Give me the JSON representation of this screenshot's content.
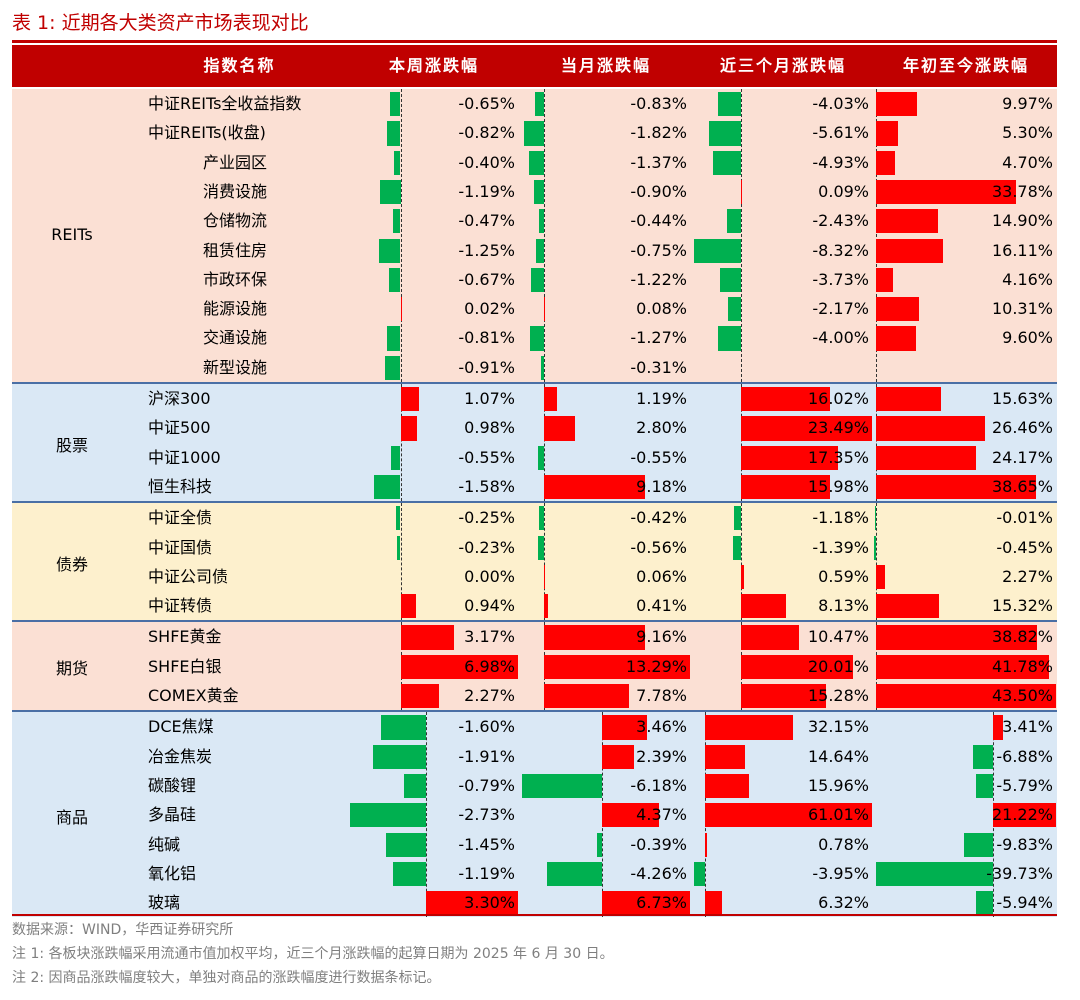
{
  "title": "表 1:  近期各大类资产市场表现对比",
  "header": {
    "name": "指数名称",
    "c1": "本周涨跌幅",
    "c2": "当月涨跌幅",
    "c3": "近三个月涨跌幅",
    "c4": "年初至今涨跌幅"
  },
  "colors": {
    "header_bg": "#c00000",
    "positive": "#ff0000",
    "negative": "#00b050",
    "reits_bg": "#fbe0d4",
    "stocks_bg": "#dae8f5",
    "bonds_bg": "#fdf0cd",
    "futures_bg": "#fbe0d4",
    "commodities_bg": "#dae8f5"
  },
  "groups": [
    {
      "label": "REITs",
      "rows": [
        {
          "name": "中证REITs全收益指数",
          "indent": false,
          "week": -0.65,
          "month": -0.83,
          "three_month": -4.03,
          "ytd": 9.97
        },
        {
          "name": "中证REITs(收盘)",
          "indent": false,
          "week": -0.82,
          "month": -1.82,
          "three_month": -5.61,
          "ytd": 5.3
        },
        {
          "name": "产业园区",
          "indent": true,
          "week": -0.4,
          "month": -1.37,
          "three_month": -4.93,
          "ytd": 4.7
        },
        {
          "name": "消费设施",
          "indent": true,
          "week": -1.19,
          "month": -0.9,
          "three_month": 0.09,
          "ytd": 33.78
        },
        {
          "name": "仓储物流",
          "indent": true,
          "week": -0.47,
          "month": -0.44,
          "three_month": -2.43,
          "ytd": 14.9
        },
        {
          "name": "租赁住房",
          "indent": true,
          "week": -1.25,
          "month": -0.75,
          "three_month": -8.32,
          "ytd": 16.11
        },
        {
          "name": "市政环保",
          "indent": true,
          "week": -0.67,
          "month": -1.22,
          "three_month": -3.73,
          "ytd": 4.16
        },
        {
          "name": "能源设施",
          "indent": true,
          "week": 0.02,
          "month": 0.08,
          "three_month": -2.17,
          "ytd": 10.31
        },
        {
          "name": "交通设施",
          "indent": true,
          "week": -0.81,
          "month": -1.27,
          "three_month": -4.0,
          "ytd": 9.6
        },
        {
          "name": "新型设施",
          "indent": true,
          "week": -0.91,
          "month": -0.31,
          "three_month": null,
          "ytd": null
        }
      ]
    },
    {
      "label": "股票",
      "rows": [
        {
          "name": "沪深300",
          "indent": false,
          "week": 1.07,
          "month": 1.19,
          "three_month": 16.02,
          "ytd": 15.63
        },
        {
          "name": "中证500",
          "indent": false,
          "week": 0.98,
          "month": 2.8,
          "three_month": 23.49,
          "ytd": 26.46
        },
        {
          "name": "中证1000",
          "indent": false,
          "week": -0.55,
          "month": -0.55,
          "three_month": 17.35,
          "ytd": 24.17
        },
        {
          "name": "恒生科技",
          "indent": false,
          "week": -1.58,
          "month": 9.18,
          "three_month": 15.98,
          "ytd": 38.65
        }
      ]
    },
    {
      "label": "债券",
      "rows": [
        {
          "name": "中证全债",
          "indent": false,
          "week": -0.25,
          "month": -0.42,
          "three_month": -1.18,
          "ytd": -0.01
        },
        {
          "name": "中证国债",
          "indent": false,
          "week": -0.23,
          "month": -0.56,
          "three_month": -1.39,
          "ytd": -0.45
        },
        {
          "name": "中证公司债",
          "indent": false,
          "week": 0.0,
          "month": 0.06,
          "three_month": 0.59,
          "ytd": 2.27
        },
        {
          "name": "中证转债",
          "indent": false,
          "week": 0.94,
          "month": 0.41,
          "three_month": 8.13,
          "ytd": 15.32
        }
      ]
    },
    {
      "label": "期货",
      "rows": [
        {
          "name": "SHFE黄金",
          "indent": false,
          "week": 3.17,
          "month": 9.16,
          "three_month": 10.47,
          "ytd": 38.82
        },
        {
          "name": "SHFE白银",
          "indent": false,
          "week": 6.98,
          "month": 13.29,
          "three_month": 20.01,
          "ytd": 41.78
        },
        {
          "name": "COMEX黄金",
          "indent": false,
          "week": 2.27,
          "month": 7.78,
          "three_month": 15.28,
          "ytd": 43.5
        }
      ]
    },
    {
      "label": "商品",
      "rows": [
        {
          "name": "DCE焦煤",
          "indent": false,
          "week": -1.6,
          "month": 3.46,
          "three_month": 32.15,
          "ytd": 3.41
        },
        {
          "name": "冶金焦炭",
          "indent": false,
          "week": -1.91,
          "month": 2.39,
          "three_month": 14.64,
          "ytd": -6.88
        },
        {
          "name": "碳酸锂",
          "indent": false,
          "week": -0.79,
          "month": -6.18,
          "three_month": 15.96,
          "ytd": -5.79
        },
        {
          "name": "多晶硅",
          "indent": false,
          "week": -2.73,
          "month": 4.37,
          "three_month": 61.01,
          "ytd": 21.22
        },
        {
          "name": "纯碱",
          "indent": false,
          "week": -1.45,
          "month": -0.39,
          "three_month": 0.78,
          "ytd": -9.83
        },
        {
          "name": "氧化铝",
          "indent": false,
          "week": -1.19,
          "month": -4.26,
          "three_month": -3.95,
          "ytd": -39.73
        },
        {
          "name": "玻璃",
          "indent": false,
          "week": 3.3,
          "month": 6.73,
          "three_month": 6.32,
          "ytd": -5.94
        }
      ]
    }
  ],
  "notes": [
    "数据来源：WIND，华西证券研究所",
    "注 1:  各板块涨跌幅采用流通市值加权平均，近三个月涨跌幅的起算日期为 2025 年 6 月 30 日。",
    "注 2:  因商品涨跌幅度较大，单独对商品的涨跌幅度进行数据条标记。"
  ]
}
